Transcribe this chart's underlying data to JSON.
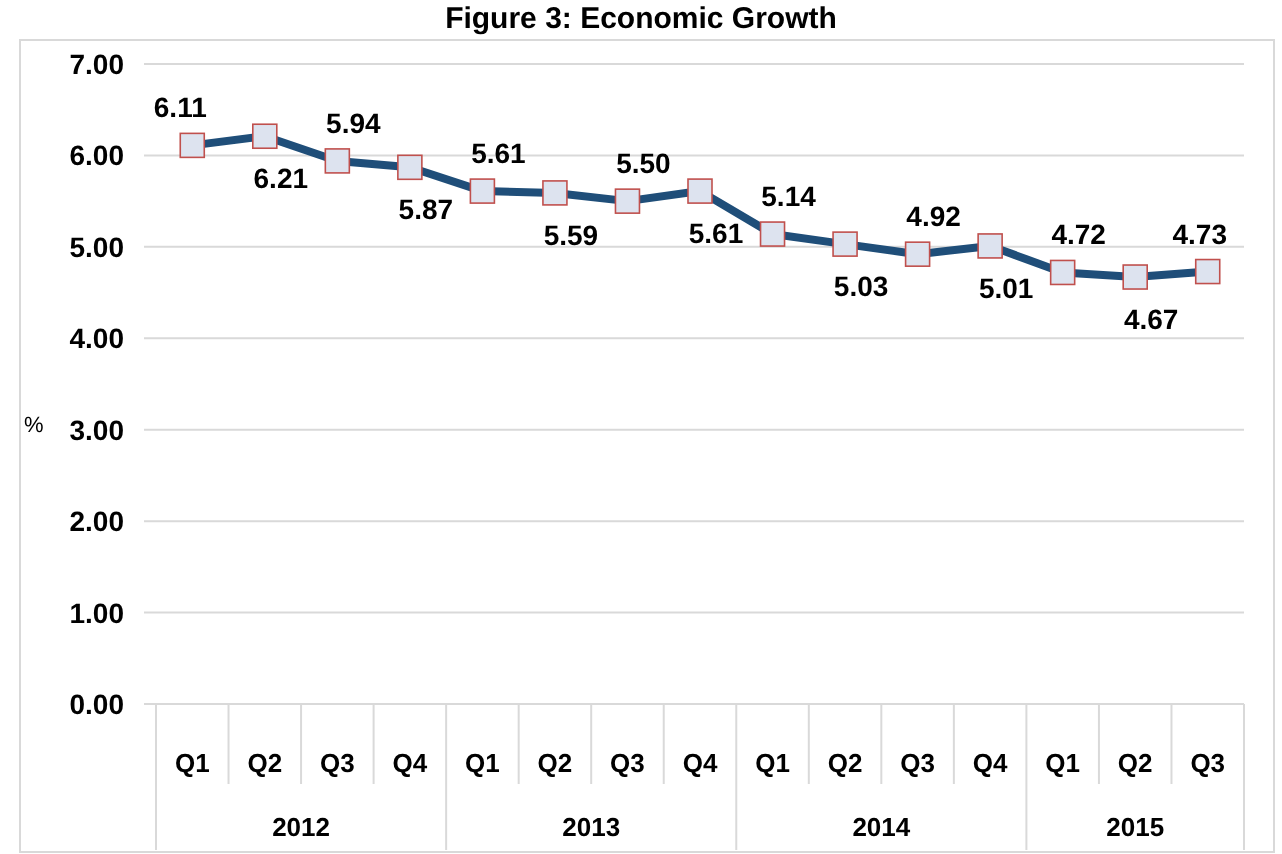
{
  "chart_data": {
    "type": "line",
    "title": "Figure 3: Economic Growth",
    "ylabel": "%",
    "categories": [
      "Q1",
      "Q2",
      "Q3",
      "Q4",
      "Q1",
      "Q2",
      "Q3",
      "Q4",
      "Q1",
      "Q2",
      "Q3",
      "Q4",
      "Q1",
      "Q2",
      "Q3"
    ],
    "series": [
      {
        "color": "#1f4e79",
        "values": [
          6.11,
          6.21,
          5.94,
          5.87,
          5.61,
          5.59,
          5.5,
          5.61,
          5.14,
          5.03,
          4.92,
          5.01,
          4.72,
          4.67,
          4.73
        ],
        "value_labels": [
          "6.11",
          "6.21",
          "5.94",
          "5.87",
          "5.61",
          "5.59",
          "5.50",
          "5.61",
          "5.14",
          "5.03",
          "4.92",
          "5.01",
          "4.72",
          "4.67",
          "4.73"
        ]
      }
    ],
    "annotations": [
      "2012",
      "2013",
      "2014",
      "2015"
    ],
    "ylim": [
      0,
      7
    ],
    "yticks": [
      {
        "value": 0,
        "label": "0.00"
      },
      {
        "value": 1,
        "label": "1.00"
      },
      {
        "value": 2,
        "label": "2.00"
      },
      {
        "value": 3,
        "label": "3.00"
      },
      {
        "value": 4,
        "label": "4.00"
      },
      {
        "value": 5,
        "label": "5.00"
      },
      {
        "value": 6,
        "label": "6.00"
      },
      {
        "value": 7,
        "label": "7.00"
      }
    ],
    "grid": "y",
    "marker": "square",
    "line_style": "solid"
  }
}
